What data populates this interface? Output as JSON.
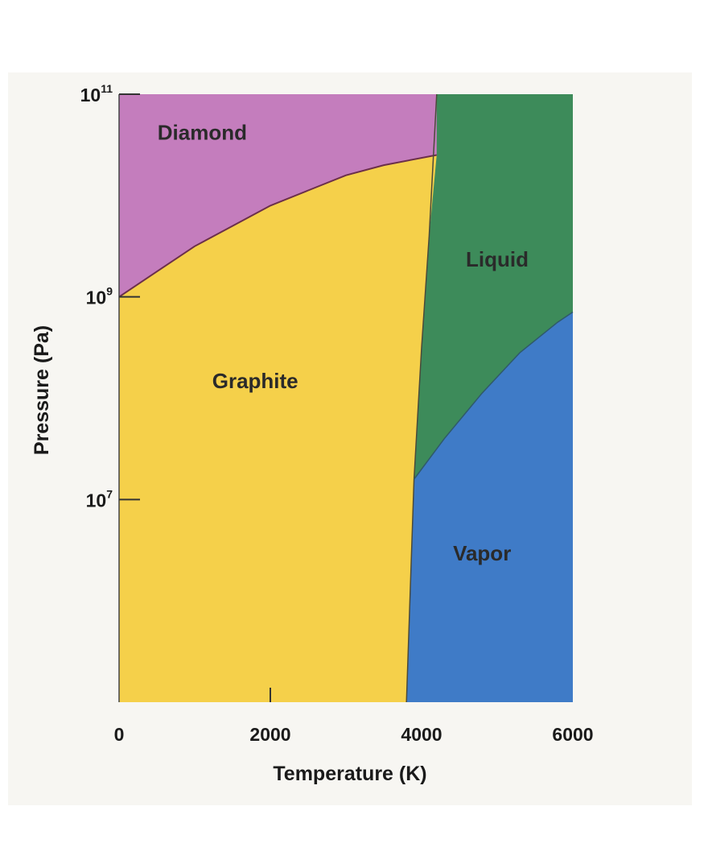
{
  "chart_data": {
    "type": "area",
    "title": "",
    "xlabel": "Temperature (K)",
    "ylabel": "Pressure (Pa)",
    "xlim": [
      0,
      6000
    ],
    "ylim_log10": [
      5,
      11
    ],
    "yscale": "log",
    "x_ticks": [
      {
        "value": 0,
        "label": "0"
      },
      {
        "value": 2000,
        "label": "2000"
      },
      {
        "value": 4000,
        "label": "4000"
      },
      {
        "value": 6000,
        "label": "6000"
      }
    ],
    "y_ticks": [
      {
        "value": 7,
        "base": "10",
        "exp": "7"
      },
      {
        "value": 9,
        "base": "10",
        "exp": "9"
      },
      {
        "value": 11,
        "base": "10",
        "exp": "11"
      }
    ],
    "boundaries": {
      "graphite_diamond": [
        [
          0,
          9.0
        ],
        [
          500,
          9.25
        ],
        [
          1000,
          9.5
        ],
        [
          1500,
          9.7
        ],
        [
          2000,
          9.9
        ],
        [
          2500,
          10.05
        ],
        [
          3000,
          10.2
        ],
        [
          3500,
          10.3
        ],
        [
          4200,
          10.4
        ]
      ],
      "solid_melt": [
        [
          3800,
          5.0
        ],
        [
          3900,
          7.2
        ],
        [
          4000,
          8.5
        ],
        [
          4100,
          9.6
        ],
        [
          4200,
          11.0
        ]
      ],
      "liquid_vapor": [
        [
          3900,
          7.2
        ],
        [
          4300,
          7.6
        ],
        [
          4800,
          8.05
        ],
        [
          5300,
          8.45
        ],
        [
          5800,
          8.75
        ],
        [
          6000,
          8.85
        ]
      ]
    },
    "regions": [
      {
        "name": "Diamond",
        "color": "#c47dbd",
        "label_at": [
          1100,
          10.55
        ]
      },
      {
        "name": "Graphite",
        "color": "#f5d04a",
        "label_at": [
          1800,
          8.1
        ]
      },
      {
        "name": "Liquid",
        "color": "#3d8b5a",
        "label_at": [
          5000,
          9.3
        ]
      },
      {
        "name": "Vapor",
        "color": "#3f7bc7",
        "label_at": [
          4800,
          6.4
        ]
      }
    ],
    "grid": false,
    "legend": "none"
  }
}
